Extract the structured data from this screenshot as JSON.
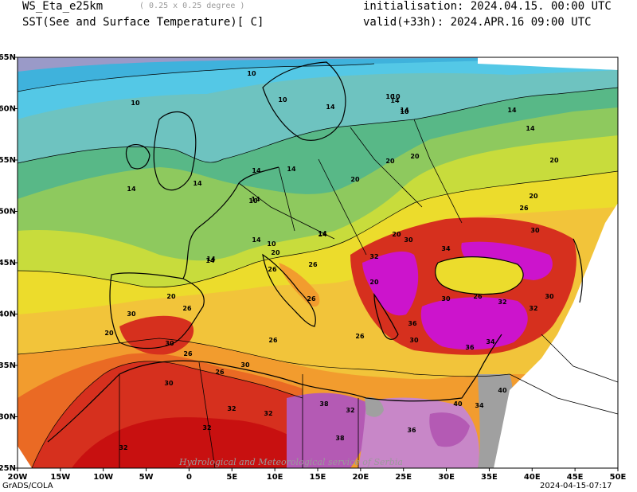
{
  "header": {
    "model": "WS_Eta_e25km",
    "resolution": "( 0.25 x 0.25 degree )",
    "field": "SST(See and Surface Temperature)[ C]",
    "init": "initialisation: 2024.04.15. 00:00 UTC",
    "valid": "valid(+33h): 2024.APR.16 09:00 UTC"
  },
  "lon_ticks": [
    "20W",
    "15W",
    "10W",
    "5W",
    "0",
    "5E",
    "10E",
    "15E",
    "20E",
    "25E",
    "30E",
    "35E",
    "40E",
    "45E",
    "50E"
  ],
  "lat_ticks": [
    "65N",
    "60N",
    "55N",
    "50N",
    "45N",
    "40N",
    "35N",
    "30N",
    "25N"
  ],
  "contour_labels": [
    "10",
    "10",
    "10",
    "10",
    "10",
    "10",
    "14",
    "14",
    "14",
    "14",
    "14",
    "14",
    "14",
    "14",
    "14",
    "14",
    "14",
    "20",
    "20",
    "20",
    "20",
    "20",
    "20",
    "20",
    "20",
    "20",
    "20",
    "26",
    "26",
    "26",
    "26",
    "26",
    "26",
    "26",
    "26",
    "26",
    "26",
    "30",
    "30",
    "30",
    "30",
    "30",
    "30",
    "30",
    "30",
    "30",
    "32",
    "32",
    "32",
    "32",
    "32",
    "32",
    "32",
    "32",
    "34",
    "34",
    "34",
    "36",
    "36",
    "36",
    "38",
    "38",
    "40",
    "40",
    "14",
    "14",
    "10",
    "10",
    "14",
    "14"
  ],
  "watermark": "Hydrological and Meteorological service of Serbia",
  "footer_left": "GrADS/COLA",
  "footer_right": "2024-04-15-07:17",
  "colors": {
    "c8": "#9a9ac8",
    "c10": "#3fb2dc",
    "c12": "#54c8e6",
    "c14": "#6ec3c0",
    "c16": "#58b887",
    "c18": "#8ec95e",
    "c20": "#c8dc3c",
    "c22": "#ecdc2c",
    "c24": "#f2c43a",
    "c26": "#f29c2e",
    "c28": "#ea6a24",
    "c30": "#d6301e",
    "c32": "#c81010",
    "c34": "#cc14cc",
    "c36": "#b45ab4",
    "c40": "#c887c8",
    "masked": "#a0a0a0"
  }
}
